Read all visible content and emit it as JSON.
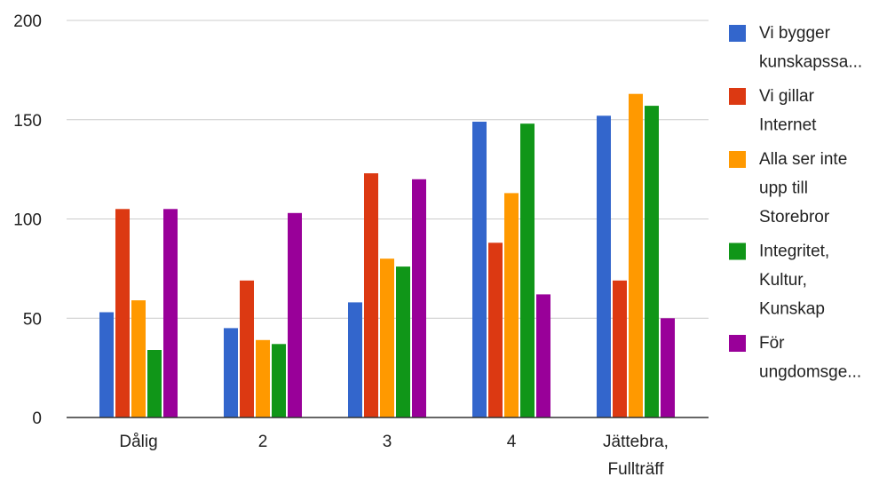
{
  "chart_data": {
    "type": "bar",
    "categories": [
      [
        "Dålig"
      ],
      [
        "2"
      ],
      [
        "3"
      ],
      [
        "4"
      ],
      [
        "Jättebra,",
        "Fullträff"
      ]
    ],
    "series": [
      {
        "name": [
          "Vi bygger",
          "kunskapssa..."
        ],
        "color": "#3366cc",
        "values": [
          53,
          45,
          58,
          149,
          152
        ]
      },
      {
        "name": [
          "Vi gillar",
          "Internet"
        ],
        "color": "#dc3912",
        "values": [
          105,
          69,
          123,
          88,
          69
        ]
      },
      {
        "name": [
          "Alla ser inte",
          "upp till",
          "Storebror"
        ],
        "color": "#ff9900",
        "values": [
          59,
          39,
          80,
          113,
          163
        ]
      },
      {
        "name": [
          "Integritet,",
          "Kultur,",
          "Kunskap"
        ],
        "color": "#109618",
        "values": [
          34,
          37,
          76,
          148,
          157
        ]
      },
      {
        "name": [
          "För",
          "ungdomsge..."
        ],
        "color": "#990099",
        "values": [
          105,
          103,
          120,
          62,
          50
        ]
      }
    ],
    "yticks": [
      "0",
      "50",
      "100",
      "150",
      "200"
    ],
    "ylim": [
      0,
      200
    ],
    "grid": true,
    "legend": "right",
    "title": "",
    "xlabel": "",
    "ylabel": ""
  }
}
